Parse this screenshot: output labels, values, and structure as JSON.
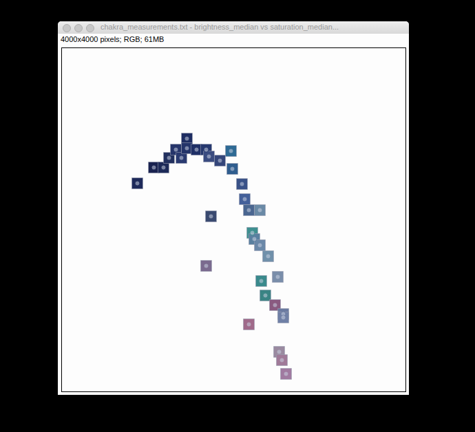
{
  "chart_data": {
    "type": "scatter",
    "title": "chakra_measurements.txt - brightness_median vs saturation_median...",
    "subtitle": "4000x4000 pixels; RGB; 61MB",
    "marker": "square",
    "tick_labels": false,
    "xlim": [
      0,
      4000
    ],
    "ylim": [
      4000,
      0
    ],
    "x": [
      880,
      1072,
      1184,
      1248,
      1328,
      1392,
      1456,
      1456,
      1568,
      1680,
      1712,
      1840,
      1968,
      1984,
      2096,
      2128,
      2176,
      2304,
      1736,
      2216,
      2240,
      2304,
      2400,
      1680,
      2512,
      2320,
      2368,
      2480,
      2576,
      2576,
      2176,
      2528,
      2560,
      2608
    ],
    "y": [
      1576,
      1392,
      1392,
      1280,
      1184,
      1280,
      1056,
      1168,
      1184,
      1184,
      1264,
      1312,
      1200,
      1408,
      1584,
      1760,
      1888,
      1888,
      1960,
      2152,
      2224,
      2296,
      2424,
      2536,
      2664,
      2712,
      2880,
      2992,
      3096,
      3136,
      3216,
      3536,
      3632,
      3792
    ],
    "colors": [
      "#1e2a5a",
      "#1a2350",
      "#1d2a58",
      "#22305e",
      "#26356a",
      "#2a3a70",
      "#1e2d62",
      "#24346a",
      "#1f2f66",
      "#26386e",
      "#3a4c80",
      "#34467a",
      "#2e6a94",
      "#2f5d8e",
      "#3a5288",
      "#44609a",
      "#4a6690",
      "#6a8aa6",
      "#3a4a70",
      "#3f9090",
      "#5a80a0",
      "#6a88a8",
      "#7090aa",
      "#7a6a8e",
      "#7a8eaa",
      "#3a8a8c",
      "#3a8484",
      "#8a5a80",
      "#6a7aa0",
      "#7080a6",
      "#a06a8a",
      "#9a8aa0",
      "#a07a98",
      "#a07aa0"
    ]
  }
}
